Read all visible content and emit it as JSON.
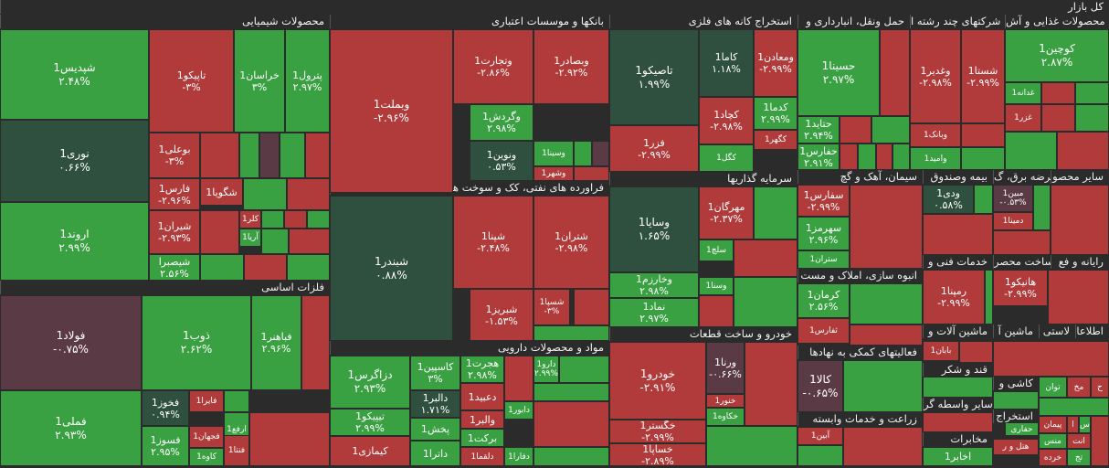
{
  "title": "کل بازار",
  "colors": {
    "gain": "#3aa143",
    "gain_strong": "#2f8f3a",
    "loss": "#b13b3b",
    "loss_strong": "#a02f31",
    "muted": "#2f4f3f",
    "muted_loss": "#5a3a45",
    "header_bg": "#2b2b2b"
  },
  "sectors": [
    {
      "name": "محصولات شیمیایی",
      "id": "chem"
    },
    {
      "name": "بانکها و موسسات اعتباری",
      "id": "banks"
    },
    {
      "name": "استخراج کانه های فلزی",
      "id": "mining"
    },
    {
      "name": "حمل ونقل، انبارداری و",
      "id": "transport"
    },
    {
      "name": "شرکتهای چند رشته ا",
      "id": "multi"
    },
    {
      "name": "محصولات غذایی و آش",
      "id": "food"
    },
    {
      "name": "فلزات اساسی",
      "id": "metals"
    },
    {
      "name": "فراورده های نفتی، کک و سوخت هسته ای",
      "id": "oil"
    },
    {
      "name": "سرمایه گذاریها",
      "id": "invest"
    },
    {
      "name": "سیمان، آهک و گچ",
      "id": "cement"
    },
    {
      "name": "بیمه وصندوق",
      "id": "insurance"
    },
    {
      "name": "عرضه برق، گ",
      "id": "power"
    },
    {
      "name": "سایر محصو",
      "id": "other"
    },
    {
      "name": "انبوه سازی، املاک و مست",
      "id": "realestate"
    },
    {
      "name": "خدمات فنی و",
      "id": "eng"
    },
    {
      "name": "ساخت محصر",
      "id": "prod"
    },
    {
      "name": "رایانه و فع",
      "id": "it"
    },
    {
      "name": "مواد و محصولات دارویی",
      "id": "pharma"
    },
    {
      "name": "خودرو و ساخت قطعات",
      "id": "auto"
    },
    {
      "name": "ماشین آلات و",
      "id": "machinery"
    },
    {
      "name": "ماشین آ",
      "id": "machinery2"
    },
    {
      "name": "لاستی",
      "id": "rubber"
    },
    {
      "name": "اطلاعا",
      "id": "info"
    },
    {
      "name": "فعالیتهای کمکی به نهادها",
      "id": "support"
    },
    {
      "name": "قند و شکر",
      "id": "sugar"
    },
    {
      "name": "کاشی و",
      "id": "tile"
    },
    {
      "name": "سایر واسطه گر",
      "id": "intermed"
    },
    {
      "name": "زراعت و خدمات وابسته",
      "id": "agri"
    },
    {
      "name": "مخابرات",
      "id": "telecom"
    },
    {
      "name": "استخراج",
      "id": "extract"
    }
  ],
  "chart_data": {
    "type": "heatmap",
    "title": "کل بازار",
    "tiles": [
      {
        "sector": "محصولات شیمیایی",
        "symbol": "شپدیس1",
        "change": "۲.۴۸%"
      },
      {
        "sector": "محصولات شیمیایی",
        "symbol": "تاپیکو1",
        "change": "-۳%"
      },
      {
        "sector": "محصولات شیمیایی",
        "symbol": "خراسان1",
        "change": "۳%"
      },
      {
        "sector": "محصولات شیمیایی",
        "symbol": "پترول1",
        "change": "۲.۹۷%"
      },
      {
        "sector": "محصولات شیمیایی",
        "symbol": "نوری1",
        "change": "۰.۶۶%"
      },
      {
        "sector": "محصولات شیمیایی",
        "symbol": "بوعلی1",
        "change": "-۳%"
      },
      {
        "sector": "محصولات شیمیایی",
        "symbol": "فارس1",
        "change": "-۲.۹۶%"
      },
      {
        "sector": "محصولات شیمیایی",
        "symbol": "شگویا1",
        "change": ""
      },
      {
        "sector": "محصولات شیمیایی",
        "symbol": "شیران1",
        "change": "-۲.۹۳%"
      },
      {
        "sector": "محصولات شیمیایی",
        "symbol": "کلر1",
        "change": ""
      },
      {
        "sector": "محصولات شیمیایی",
        "symbol": "آریا1",
        "change": ""
      },
      {
        "sector": "محصولات شیمیایی",
        "symbol": "اروند1",
        "change": "۲.۹۹%"
      },
      {
        "sector": "محصولات شیمیایی",
        "symbol": "شیصبرا",
        "change": "۲.۵۶%"
      },
      {
        "sector": "بانکها و موسسات اعتباری",
        "symbol": "وبملت1",
        "change": "-۲.۹۶%"
      },
      {
        "sector": "بانکها و موسسات اعتباری",
        "symbol": "وتجارت1",
        "change": "-۲.۸۶%"
      },
      {
        "sector": "بانکها و موسسات اعتباری",
        "symbol": "وبصادر1",
        "change": "-۲.۹۲%"
      },
      {
        "sector": "بانکها و موسسات اعتباری",
        "symbol": "وگردش1",
        "change": "۲.۹۸%"
      },
      {
        "sector": "بانکها و موسسات اعتباری",
        "symbol": "ونوین1",
        "change": "۰.۵۳%"
      },
      {
        "sector": "بانکها و موسسات اعتباری",
        "symbol": "وسینا1",
        "change": ""
      },
      {
        "sector": "بانکها و موسسات اعتباری",
        "symbol": "وشهر1",
        "change": ""
      },
      {
        "sector": "استخراج کانه های فلزی",
        "symbol": "تاصیکو1",
        "change": "۱.۹۹%"
      },
      {
        "sector": "استخراج کانه های فلزی",
        "symbol": "کاما1",
        "change": "۱.۱۸%"
      },
      {
        "sector": "استخراج کانه های فلزی",
        "symbol": "ومعادن1",
        "change": "-۲.۹۹%"
      },
      {
        "sector": "استخراج کانه های فلزی",
        "symbol": "کچاد1",
        "change": "-۲.۹۸%"
      },
      {
        "sector": "استخراج کانه های فلزی",
        "symbol": "کدما1",
        "change": "۲.۹۹%"
      },
      {
        "sector": "استخراج کانه های فلزی",
        "symbol": "کگهر1",
        "change": ""
      },
      {
        "sector": "استخراج کانه های فلزی",
        "symbol": "کگل1",
        "change": ""
      },
      {
        "sector": "استخراج کانه های فلزی",
        "symbol": "فزر1",
        "change": "-۲.۹۹%"
      },
      {
        "sector": "حمل ونقل، انبارداری و",
        "symbol": "حسینا1",
        "change": "۲.۹۷%"
      },
      {
        "sector": "حمل ونقل، انبارداری و",
        "symbol": "حتاید1",
        "change": "۲.۹۴%"
      },
      {
        "sector": "حمل ونقل، انبارداری و",
        "symbol": "حفارس1",
        "change": "۲.۹۱%"
      },
      {
        "sector": "شرکتهای چند رشته ا",
        "symbol": "وغدیر1",
        "change": "-۲.۹۸%"
      },
      {
        "sector": "شرکتهای چند رشته ا",
        "symbol": "شستا1",
        "change": "-۲.۹۹%"
      },
      {
        "sector": "شرکتهای چند رشته ا",
        "symbol": "وبانک1",
        "change": ""
      },
      {
        "sector": "شرکتهای چند رشته ا",
        "symbol": "وامید1",
        "change": ""
      },
      {
        "sector": "محصولات غذایی و آش",
        "symbol": "کوچین1",
        "change": "۲.۸۷%"
      },
      {
        "sector": "محصولات غذایی و آش",
        "symbol": "غدانه1",
        "change": ""
      },
      {
        "sector": "محصولات غذایی و آش",
        "symbol": "غزر1",
        "change": ""
      },
      {
        "sector": "فلزات اساسی",
        "symbol": "فولاد1",
        "change": "-۰.۷۵%"
      },
      {
        "sector": "فلزات اساسی",
        "symbol": "ذوب1",
        "change": "۲.۶۲%"
      },
      {
        "sector": "فلزات اساسی",
        "symbol": "فباهنر1",
        "change": "۲.۹۶%"
      },
      {
        "sector": "فلزات اساسی",
        "symbol": "فملی1",
        "change": "۲.۹۳%"
      },
      {
        "sector": "فلزات اساسی",
        "symbol": "فخوز1",
        "change": "۰.۹۴%"
      },
      {
        "sector": "فلزات اساسی",
        "symbol": "فایرا1",
        "change": ""
      },
      {
        "sector": "فلزات اساسی",
        "symbol": "فسوز1",
        "change": "۲.۹۵%"
      },
      {
        "sector": "فلزات اساسی",
        "symbol": "فجهان1",
        "change": ""
      },
      {
        "sector": "فلزات اساسی",
        "symbol": "ارفع1",
        "change": ""
      },
      {
        "sector": "فلزات اساسی",
        "symbol": "فنتا1",
        "change": ""
      },
      {
        "sector": "فلزات اساسی",
        "symbol": "کاوه1",
        "change": ""
      },
      {
        "sector": "فراورده های نفتی، کک و سوخت هسته ای",
        "symbol": "شبندر1",
        "change": "۰.۸۸%"
      },
      {
        "sector": "فراورده های نفتی، کک و سوخت هسته ای",
        "symbol": "شپنا1",
        "change": "-۲.۴۸%"
      },
      {
        "sector": "فراورده های نفتی، کک و سوخت هسته ای",
        "symbol": "شتران1",
        "change": "-۲.۹۸%"
      },
      {
        "sector": "فراورده های نفتی، کک و سوخت هسته ای",
        "symbol": "شبریز1",
        "change": "-۱.۵۳%"
      },
      {
        "sector": "فراورده های نفتی، کک و سوخت هسته ای",
        "symbol": "شسپا1",
        "change": "-۳%"
      },
      {
        "sector": "سرمایه گذاریها",
        "symbol": "وسایا1",
        "change": "۱.۶۵%"
      },
      {
        "sector": "سرمایه گذاریها",
        "symbol": "مهرگان1",
        "change": "-۲.۳۷%"
      },
      {
        "sector": "سرمایه گذاریها",
        "symbol": "سلچ1",
        "change": ""
      },
      {
        "sector": "سرمایه گذاریها",
        "symbol": "وخارزم1",
        "change": "۲.۹۸%"
      },
      {
        "sector": "سرمایه گذاریها",
        "symbol": "وسنا1",
        "change": ""
      },
      {
        "sector": "سرمایه گذاریها",
        "symbol": "نماد1",
        "change": "۲.۹۷%"
      },
      {
        "sector": "سیمان، آهک و گچ",
        "symbol": "سفارس1",
        "change": "-۲.۹۹%"
      },
      {
        "sector": "سیمان، آهک و گچ",
        "symbol": "سهرمز1",
        "change": "۲.۹۶%"
      },
      {
        "sector": "سیمان، آهک و گچ",
        "symbol": "ستران1",
        "change": ""
      },
      {
        "sector": "بیمه وصندوق",
        "symbol": "ودی1",
        "change": "۰.۵۸%"
      },
      {
        "sector": "عرضه برق، گ",
        "symbol": "مبین1",
        "change": "-۰.۵۳%"
      },
      {
        "sector": "عرضه برق، گ",
        "symbol": "دمینا1",
        "change": ""
      },
      {
        "sector": "انبوه سازی، املاک و مست",
        "symbol": "کرمان1",
        "change": "۲.۵۶%"
      },
      {
        "sector": "انبوه سازی، املاک و مست",
        "symbol": "ثفارس1",
        "change": ""
      },
      {
        "sector": "خدمات فنی و",
        "symbol": "رمپنا1",
        "change": "-۲.۹۹%"
      },
      {
        "sector": "ساخت محصر",
        "symbol": "هانیکو1",
        "change": "-۲.۹۹%"
      },
      {
        "sector": "مواد و محصولات دارویی",
        "symbol": "دزاگرس1",
        "change": "۲.۹۳%"
      },
      {
        "sector": "مواد و محصولات دارویی",
        "symbol": "کاسپین1",
        "change": "۳%"
      },
      {
        "sector": "مواد و محصولات دارویی",
        "symbol": "هجرت1",
        "change": "۲.۹۸%"
      },
      {
        "sector": "مواد و محصولات دارویی",
        "symbol": "دارو1",
        "change": "۲.۹۹%"
      },
      {
        "sector": "مواد و محصولات دارویی",
        "symbol": "دالبر1",
        "change": "۱.۷۱%"
      },
      {
        "sector": "مواد و محصولات دارویی",
        "symbol": "دعبید1",
        "change": ""
      },
      {
        "sector": "مواد و محصولات دارویی",
        "symbol": "دابور1",
        "change": ""
      },
      {
        "sector": "مواد و محصولات دارویی",
        "symbol": "تیپیکو1",
        "change": "۲.۹۹%"
      },
      {
        "sector": "مواد و محصولات دارویی",
        "symbol": "پخش1",
        "change": ""
      },
      {
        "sector": "مواد و محصولات دارویی",
        "symbol": "والبر1",
        "change": ""
      },
      {
        "sector": "مواد و محصولات دارویی",
        "symbol": "برکت1",
        "change": ""
      },
      {
        "sector": "مواد و محصولات دارویی",
        "symbol": "کیمازی1",
        "change": ""
      },
      {
        "sector": "مواد و محصولات دارویی",
        "symbol": "داترا1",
        "change": ""
      },
      {
        "sector": "مواد و محصولات دارویی",
        "symbol": "دلقما1",
        "change": ""
      },
      {
        "sector": "مواد و محصولات دارویی",
        "symbol": "دفارا1",
        "change": ""
      },
      {
        "sector": "خودرو و ساخت قطعات",
        "symbol": "خودرو1",
        "change": "-۲.۹۱%"
      },
      {
        "sector": "خودرو و ساخت قطعات",
        "symbol": "ورنا1",
        "change": "-۰.۶۶%"
      },
      {
        "sector": "خودرو و ساخت قطعات",
        "symbol": "خنور1",
        "change": ""
      },
      {
        "sector": "خودرو و ساخت قطعات",
        "symbol": "خکاوه1",
        "change": ""
      },
      {
        "sector": "خودرو و ساخت قطعات",
        "symbol": "خگستر1",
        "change": "-۲.۹۹%"
      },
      {
        "sector": "خودرو و ساخت قطعات",
        "symbol": "خساپا1",
        "change": "-۲.۸۹%"
      },
      {
        "sector": "ماشین آلات و",
        "symbol": "بابان1",
        "change": ""
      },
      {
        "sector": "فعالیتهای کمکی به نهادها",
        "symbol": "کالا1",
        "change": "-۰.۶۵%"
      },
      {
        "sector": "زراعت و خدمات وابسته",
        "symbol": "آبین1",
        "change": ""
      },
      {
        "sector": "سایر واسطه گر",
        "symbol": "حفاری",
        "change": ""
      },
      {
        "sector": "سایر واسطه گر",
        "symbol": "هتل و ر",
        "change": ""
      },
      {
        "sector": "مخابرات",
        "symbol": "اخابر1",
        "change": ""
      },
      {
        "sector": "بیمه وصندوق",
        "symbol": "ح",
        "change": ""
      },
      {
        "sector": "اطلاعا",
        "symbol": "اس",
        "change": ""
      },
      {
        "sector": "اطلاعا",
        "symbol": "مخ",
        "change": ""
      },
      {
        "sector": "اطلاعا",
        "symbol": "توان",
        "change": ""
      },
      {
        "sector": "اطلاعا",
        "symbol": "ا",
        "change": ""
      },
      {
        "sector": "اطلاعا",
        "symbol": "س",
        "change": ""
      },
      {
        "sector": "اطلاعا",
        "symbol": "پیمان",
        "change": ""
      },
      {
        "sector": "اطلاعا",
        "symbol": "منس",
        "change": ""
      },
      {
        "sector": "اطلاعا",
        "symbol": "انت",
        "change": ""
      },
      {
        "sector": "اطلاعا",
        "symbol": "تج",
        "change": ""
      },
      {
        "sector": "اطلاعا",
        "symbol": "خرده",
        "change": ""
      }
    ]
  }
}
